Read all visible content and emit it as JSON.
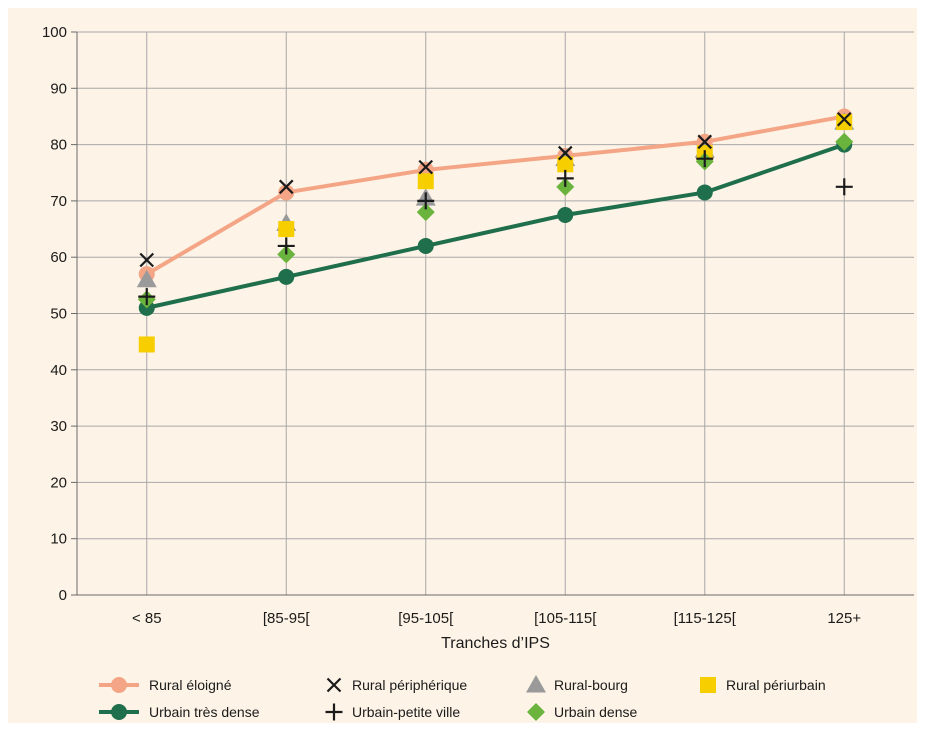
{
  "chart_data": {
    "type": "line",
    "title": "",
    "xlabel": "Tranches d’IPS",
    "ylabel": "",
    "ylim": [
      0,
      100
    ],
    "yticks": [
      0,
      10,
      20,
      30,
      40,
      50,
      60,
      70,
      80,
      90,
      100
    ],
    "grid": true,
    "legend_position": "bottom",
    "categories": [
      "< 85",
      "[85-95[",
      "[95-105[",
      "[105-115[",
      "[115-125[",
      "125+"
    ],
    "series": [
      {
        "name": "Rural éloigné",
        "style": "line-circle",
        "color": "#f4a585",
        "values": [
          57,
          71.5,
          75.5,
          78,
          80.5,
          85
        ]
      },
      {
        "name": "Rural périphérique",
        "style": "x",
        "color": "#1b1b1b",
        "values": [
          59.5,
          72.5,
          76,
          78.5,
          80.5,
          84.5
        ]
      },
      {
        "name": "Rural-bourg",
        "style": "triangle",
        "color": "#9a9a9a",
        "values": [
          56,
          66,
          70.5,
          77.5,
          79,
          84
        ]
      },
      {
        "name": "Rural périurbain",
        "style": "square",
        "color": "#f7ce00",
        "values": [
          44.5,
          65,
          73.5,
          76.5,
          78.5,
          84
        ]
      },
      {
        "name": "Urbain très dense",
        "style": "line-circle",
        "color": "#1f6e4c",
        "values": [
          51,
          56.5,
          62,
          67.5,
          71.5,
          80
        ]
      },
      {
        "name": "Urbain-petite ville",
        "style": "plus",
        "color": "#1b1b1b",
        "values": [
          53,
          62,
          70,
          74,
          77.5,
          72.5
        ]
      },
      {
        "name": "Urbain dense",
        "style": "diamond",
        "color": "#6ab43e",
        "values": [
          52.5,
          60.5,
          68,
          72.5,
          77,
          80.5
        ]
      }
    ]
  }
}
